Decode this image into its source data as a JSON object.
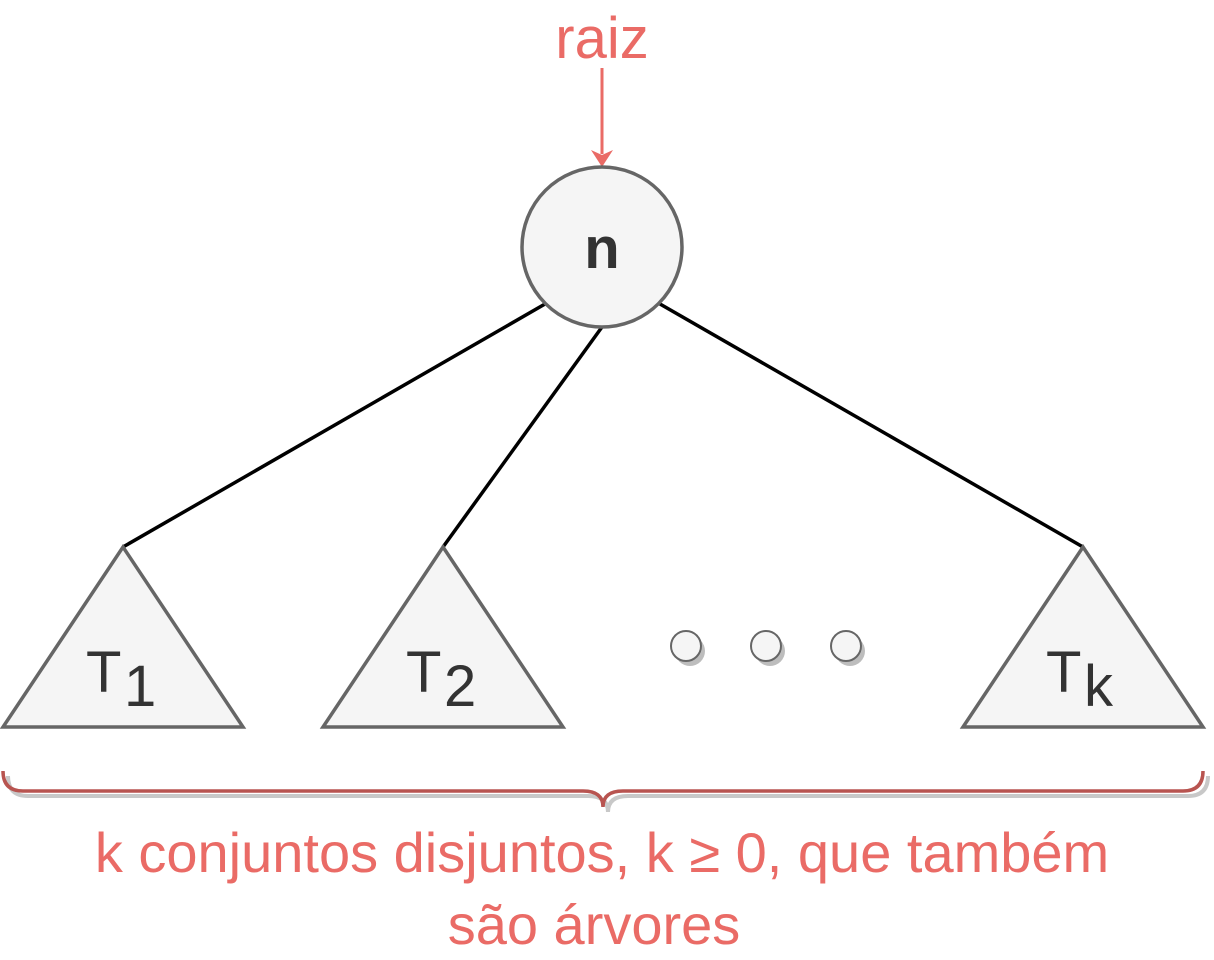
{
  "root_label": "raiz",
  "node_label": "n",
  "subtrees": [
    {
      "letter": "T",
      "index": "1"
    },
    {
      "letter": "T",
      "index": "2"
    },
    {
      "letter": "T",
      "index": "k"
    }
  ],
  "caption": {
    "line1": "k conjuntos disjuntos, k ≥ 0, que também",
    "line2": "são árvores"
  },
  "colors": {
    "accent": "#ea6b66",
    "node_fill": "#f5f5f5",
    "node_stroke": "#666666",
    "text_dark": "#333333",
    "edge": "#000000",
    "brace": "#b85450"
  }
}
